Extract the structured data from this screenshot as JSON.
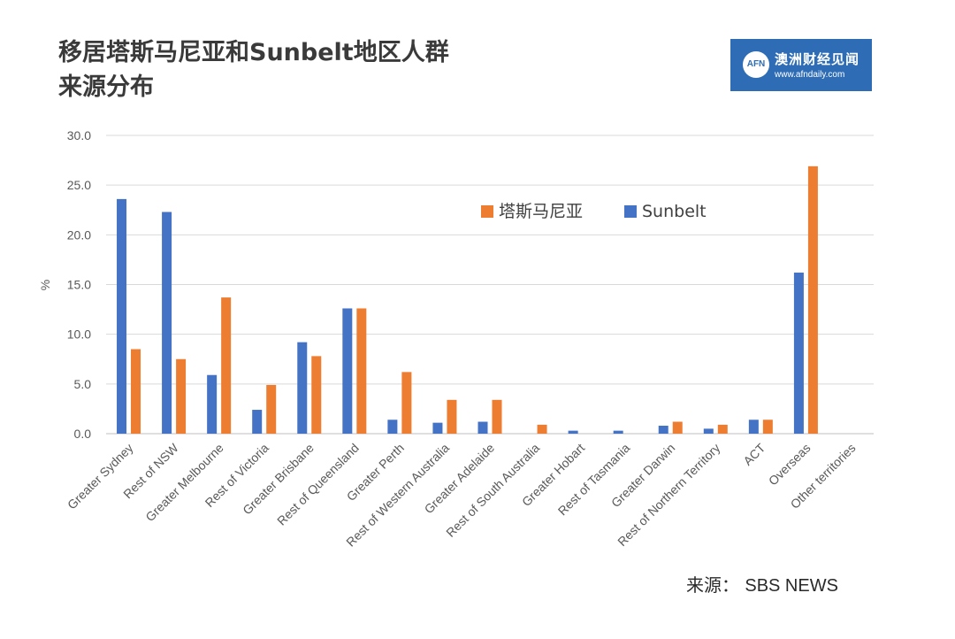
{
  "header": {
    "title_line1": "移居塔斯马尼亚和Sunbelt地区人群",
    "title_line2": "来源分布"
  },
  "logo": {
    "mark": "AFN",
    "name": "澳洲财经见闻",
    "url": "www.afndaily.com",
    "color": "#2e6db5"
  },
  "source": {
    "label": "来源：",
    "value": "SBS NEWS"
  },
  "chart_data": {
    "type": "bar",
    "title": "移居塔斯马尼亚和Sunbelt地区人群来源分布",
    "xlabel": "",
    "ylabel": "%",
    "ylim": [
      0,
      30
    ],
    "yticks": [
      "0.0",
      "5.0",
      "10.0",
      "15.0",
      "20.0",
      "25.0",
      "30.0"
    ],
    "grid": true,
    "legend_position": "top-center",
    "categories": [
      "Greater Sydney",
      "Rest of NSW",
      "Greater Melbourne",
      "Rest of Victoria",
      "Greater Brisbane",
      "Rest of Queensland",
      "Greater Perth",
      "Rest of Western Australia",
      "Greater Adelaide",
      "Rest of South Australia",
      "Greater Hobart",
      "Rest of Tasmania",
      "Greater Darwin",
      "Rest of Northern Territory",
      "ACT",
      "Overseas",
      "Other territories"
    ],
    "series": [
      {
        "name": "Sunbelt",
        "color": "#4472c4",
        "values": [
          23.6,
          22.3,
          5.9,
          2.4,
          9.2,
          12.6,
          1.4,
          1.1,
          1.2,
          0,
          0.3,
          0.3,
          0.8,
          0.5,
          1.4,
          16.2,
          0
        ]
      },
      {
        "name": "塔斯马尼亚",
        "color": "#ed7d31",
        "values": [
          8.5,
          7.5,
          13.7,
          4.9,
          7.8,
          12.6,
          6.2,
          3.4,
          3.4,
          0.9,
          0,
          0,
          1.2,
          0.9,
          1.4,
          26.9,
          0
        ]
      }
    ],
    "legend_order": [
      "塔斯马尼亚",
      "Sunbelt"
    ]
  }
}
